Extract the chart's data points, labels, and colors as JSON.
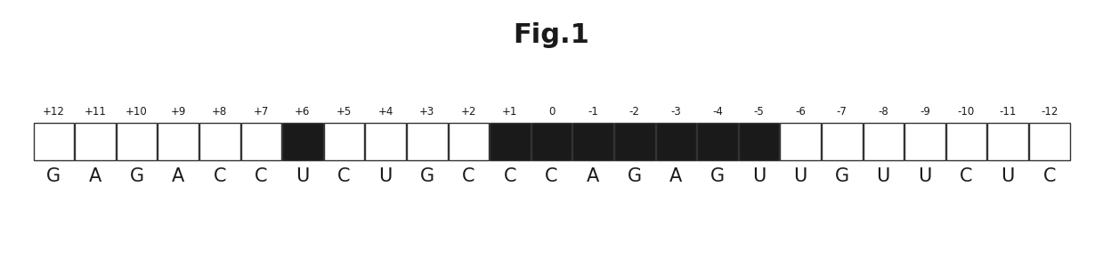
{
  "title": "Fig.1",
  "positions": [
    "+12",
    "+11",
    "+10",
    "+9",
    "+8",
    "+7",
    "+6",
    "+5",
    "+4",
    "+3",
    "+2",
    "+1",
    "0",
    "-1",
    "-2",
    "-3",
    "-4",
    "-5",
    "-6",
    "-7",
    "-8",
    "-9",
    "-10",
    "-11",
    "-12"
  ],
  "nucleotides": [
    "G",
    "A",
    "G",
    "A",
    "C",
    "C",
    "U",
    "C",
    "U",
    "G",
    "C",
    "C",
    "C",
    "A",
    "G",
    "A",
    "G",
    "U",
    "U",
    "G",
    "U",
    "U",
    "C",
    "U",
    "C"
  ],
  "filled": [
    false,
    false,
    false,
    false,
    false,
    false,
    true,
    false,
    false,
    false,
    false,
    true,
    true,
    true,
    true,
    true,
    true,
    true,
    false,
    false,
    false,
    false,
    false,
    false,
    false
  ],
  "box_color_filled": "#1a1a1a",
  "box_color_empty": "#ffffff",
  "box_edge_color": "#333333",
  "title_fontsize": 22,
  "label_fontsize": 8.5,
  "nuc_fontsize": 15,
  "bg_color": "#ffffff"
}
